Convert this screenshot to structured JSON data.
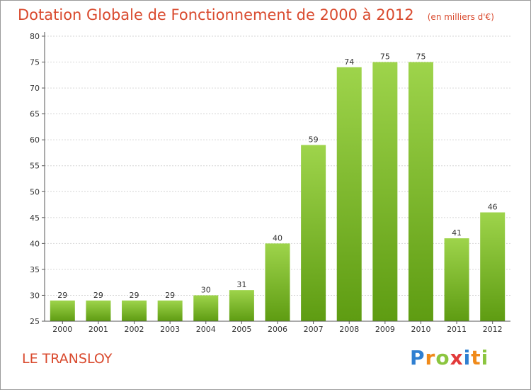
{
  "colors": {
    "accent": "#d94a2e",
    "bar_light": "#9ed44b",
    "bar_dark": "#5e9c12",
    "axis": "#555555",
    "grid": "#d6d6d6"
  },
  "footer": {
    "commune": "LE TRANSLOY",
    "brand_letters": [
      {
        "ch": "P",
        "color": "#2f7fd1"
      },
      {
        "ch": "r",
        "color": "#f08a1a"
      },
      {
        "ch": "o",
        "color": "#8bc53f"
      },
      {
        "ch": "x",
        "color": "#e23a3a"
      },
      {
        "ch": "i",
        "color": "#2f7fd1"
      },
      {
        "ch": "t",
        "color": "#f08a1a"
      },
      {
        "ch": "i",
        "color": "#8bc53f"
      }
    ]
  },
  "chart_data": {
    "type": "bar",
    "title": "Dotation Globale de Fonctionnement de 2000 à 2012",
    "unit_note": "(en milliers d'€)",
    "categories": [
      "2000",
      "2001",
      "2002",
      "2003",
      "2004",
      "2005",
      "2006",
      "2007",
      "2008",
      "2009",
      "2010",
      "2011",
      "2012"
    ],
    "values": [
      29,
      29,
      29,
      29,
      30,
      31,
      40,
      59,
      74,
      75,
      75,
      41,
      46
    ],
    "ylim": [
      25,
      80
    ],
    "yticks": [
      25,
      30,
      35,
      40,
      45,
      50,
      55,
      60,
      65,
      70,
      75,
      80
    ],
    "grid": true,
    "legend": "none"
  }
}
